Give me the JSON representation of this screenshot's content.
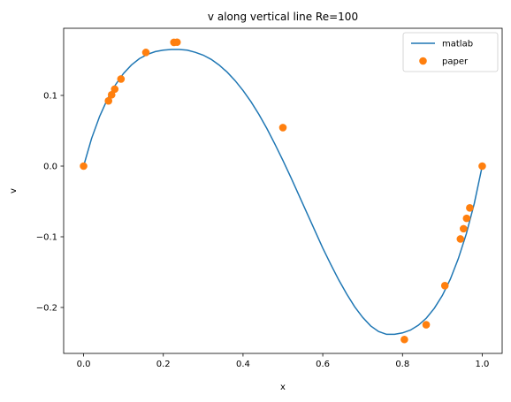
{
  "chart_data": {
    "type": "line",
    "title": "v along vertical line Re=100",
    "xlabel": "x",
    "ylabel": "v",
    "xlim": [
      -0.05,
      1.05
    ],
    "ylim": [
      -0.265,
      0.195
    ],
    "xticks": [
      0.0,
      0.2,
      0.4,
      0.6,
      0.8,
      1.0
    ],
    "xtick_labels": [
      "0.0",
      "0.2",
      "0.4",
      "0.6",
      "0.8",
      "1.0"
    ],
    "yticks": [
      -0.2,
      -0.1,
      0.0,
      0.1
    ],
    "ytick_labels": [
      "−0.2",
      "−0.1",
      "0.0",
      "0.1"
    ],
    "grid": false,
    "legend_position": "top-right",
    "series": [
      {
        "name": "matlab",
        "kind": "line",
        "color": "#1f77b4",
        "x": [
          0.0,
          0.02,
          0.04,
          0.06,
          0.08,
          0.1,
          0.12,
          0.14,
          0.16,
          0.18,
          0.2,
          0.22,
          0.24,
          0.26,
          0.28,
          0.3,
          0.32,
          0.34,
          0.36,
          0.38,
          0.4,
          0.42,
          0.44,
          0.46,
          0.48,
          0.5,
          0.52,
          0.54,
          0.56,
          0.58,
          0.6,
          0.62,
          0.64,
          0.66,
          0.68,
          0.7,
          0.72,
          0.74,
          0.76,
          0.78,
          0.8,
          0.82,
          0.84,
          0.86,
          0.88,
          0.9,
          0.92,
          0.94,
          0.96,
          0.98,
          1.0
        ],
        "y": [
          0.0,
          0.039,
          0.07,
          0.095,
          0.115,
          0.131,
          0.143,
          0.152,
          0.158,
          0.162,
          0.164,
          0.165,
          0.165,
          0.164,
          0.161,
          0.157,
          0.151,
          0.143,
          0.133,
          0.121,
          0.107,
          0.091,
          0.073,
          0.053,
          0.031,
          0.008,
          -0.016,
          -0.041,
          -0.066,
          -0.091,
          -0.116,
          -0.139,
          -0.161,
          -0.181,
          -0.199,
          -0.214,
          -0.226,
          -0.234,
          -0.238,
          -0.238,
          -0.236,
          -0.232,
          -0.225,
          -0.215,
          -0.201,
          -0.183,
          -0.16,
          -0.131,
          -0.096,
          -0.053,
          0.0
        ]
      },
      {
        "name": "paper",
        "kind": "scatter",
        "color": "#ff7f0e",
        "x": [
          0.0,
          0.0625,
          0.0703,
          0.0781,
          0.0938,
          0.1563,
          0.2266,
          0.2344,
          0.5,
          0.8047,
          0.8594,
          0.9063,
          0.9453,
          0.9531,
          0.9609,
          0.9688,
          1.0
        ],
        "y": [
          0.0,
          0.0923,
          0.1009,
          0.1089,
          0.1232,
          0.1608,
          0.1751,
          0.1753,
          0.0545,
          -0.2453,
          -0.2245,
          -0.1691,
          -0.1031,
          -0.0886,
          -0.0739,
          -0.0591,
          0.0
        ]
      }
    ]
  }
}
